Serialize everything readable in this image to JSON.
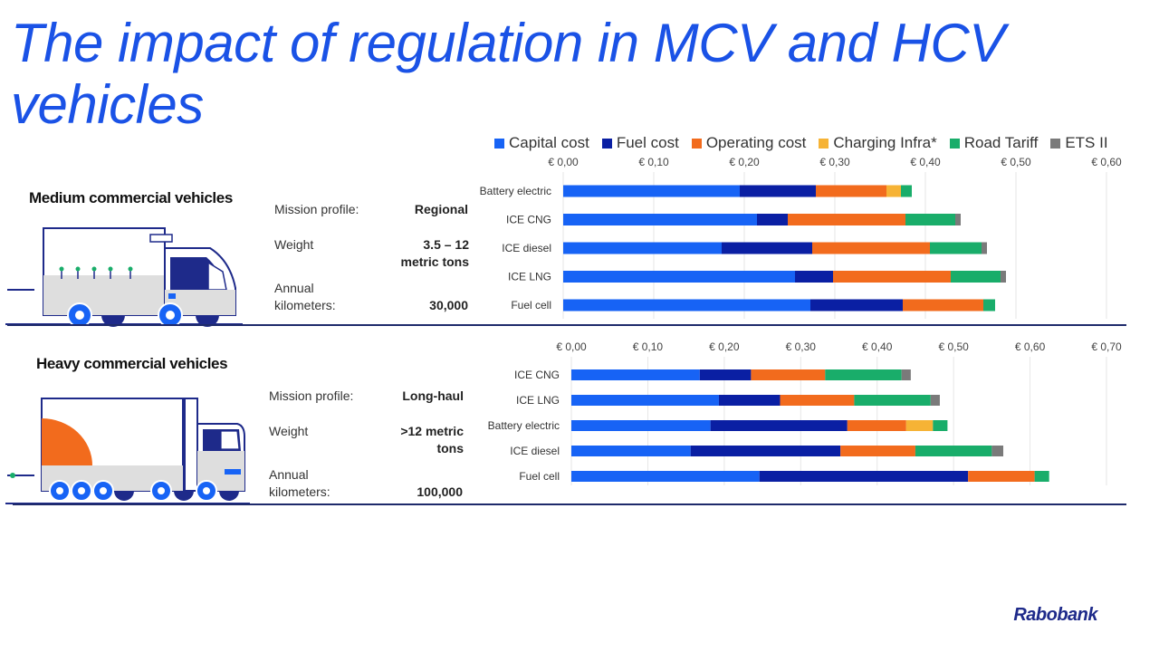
{
  "title": "The impact of regulation in MCV and HCV vehicles",
  "legend": [
    {
      "label": "Capital cost",
      "color": "#1763f5"
    },
    {
      "label": "Fuel cost",
      "color": "#0a1fa3"
    },
    {
      "label": "Operating cost",
      "color": "#f26b1d"
    },
    {
      "label": "Charging Infra*",
      "color": "#f6b335"
    },
    {
      "label": "Road Tariff",
      "color": "#19ad6a"
    },
    {
      "label": "ETS II",
      "color": "#7a7a7a"
    }
  ],
  "mcv": {
    "section_title": "Medium commercial vehicles",
    "mission_label": "Mission profile:",
    "mission_value": "Regional",
    "weight_label": "Weight",
    "weight_value_line1": "3.5 – 12",
    "weight_value_line2": "metric tons",
    "km_label_line1": "Annual",
    "km_label_line2": "kilometers:",
    "km_value": "30,000"
  },
  "hcv": {
    "section_title": "Heavy commercial vehicles",
    "mission_label": "Mission profile:",
    "mission_value": "Long-haul",
    "weight_label": "Weight",
    "weight_value_line1": ">12 metric",
    "weight_value_line2": "tons",
    "km_label_line1": "Annual",
    "km_label_line2": "kilometers:",
    "km_value": "100,000"
  },
  "brand": "Rabobank",
  "chart_data": [
    {
      "type": "bar",
      "orientation": "horizontal",
      "stacked": true,
      "title": "Medium commercial vehicles",
      "xlim": [
        0,
        0.6
      ],
      "ticks": [
        "€ 0,00",
        "€ 0,10",
        "€ 0,20",
        "€ 0,30",
        "€ 0,40",
        "€ 0,50",
        "€ 0,60"
      ],
      "tick_values": [
        0,
        0.1,
        0.2,
        0.3,
        0.4,
        0.5,
        0.6
      ],
      "categories": [
        "Battery electric",
        "ICE CNG",
        "ICE diesel",
        "ICE LNG",
        "Fuel cell"
      ],
      "series": [
        {
          "name": "Capital cost",
          "values": [
            0.195,
            0.214,
            0.175,
            0.256,
            0.273
          ]
        },
        {
          "name": "Fuel cost",
          "values": [
            0.084,
            0.034,
            0.1,
            0.042,
            0.102
          ]
        },
        {
          "name": "Operating cost",
          "values": [
            0.078,
            0.13,
            0.13,
            0.13,
            0.089
          ]
        },
        {
          "name": "Charging Infra*",
          "values": [
            0.016,
            0,
            0,
            0,
            0
          ]
        },
        {
          "name": "Road Tariff",
          "values": [
            0.012,
            0.055,
            0.057,
            0.055,
            0.013
          ]
        },
        {
          "name": "ETS II",
          "values": [
            0,
            0.006,
            0.006,
            0.006,
            0
          ]
        }
      ]
    },
    {
      "type": "bar",
      "orientation": "horizontal",
      "stacked": true,
      "title": "Heavy commercial vehicles",
      "xlim": [
        0,
        0.7
      ],
      "ticks": [
        "€ 0,00",
        "€ 0,10",
        "€ 0,20",
        "€ 0,30",
        "€ 0,40",
        "€ 0,50",
        "€ 0,60",
        "€ 0,70"
      ],
      "tick_values": [
        0,
        0.1,
        0.2,
        0.3,
        0.4,
        0.5,
        0.6,
        0.7
      ],
      "categories": [
        "ICE CNG",
        "ICE LNG",
        "Battery electric",
        "ICE diesel",
        "Fuel cell"
      ],
      "series": [
        {
          "name": "Capital cost",
          "values": [
            0.168,
            0.193,
            0.182,
            0.156,
            0.246
          ]
        },
        {
          "name": "Fuel cost",
          "values": [
            0.067,
            0.08,
            0.179,
            0.196,
            0.273
          ]
        },
        {
          "name": "Operating cost",
          "values": [
            0.097,
            0.097,
            0.077,
            0.098,
            0.087
          ]
        },
        {
          "name": "Charging Infra*",
          "values": [
            0,
            0,
            0.035,
            0,
            0
          ]
        },
        {
          "name": "Road Tariff",
          "values": [
            0.1,
            0.1,
            0.019,
            0.1,
            0.019
          ]
        },
        {
          "name": "ETS II",
          "values": [
            0.012,
            0.012,
            0,
            0.015,
            0
          ]
        }
      ]
    }
  ]
}
